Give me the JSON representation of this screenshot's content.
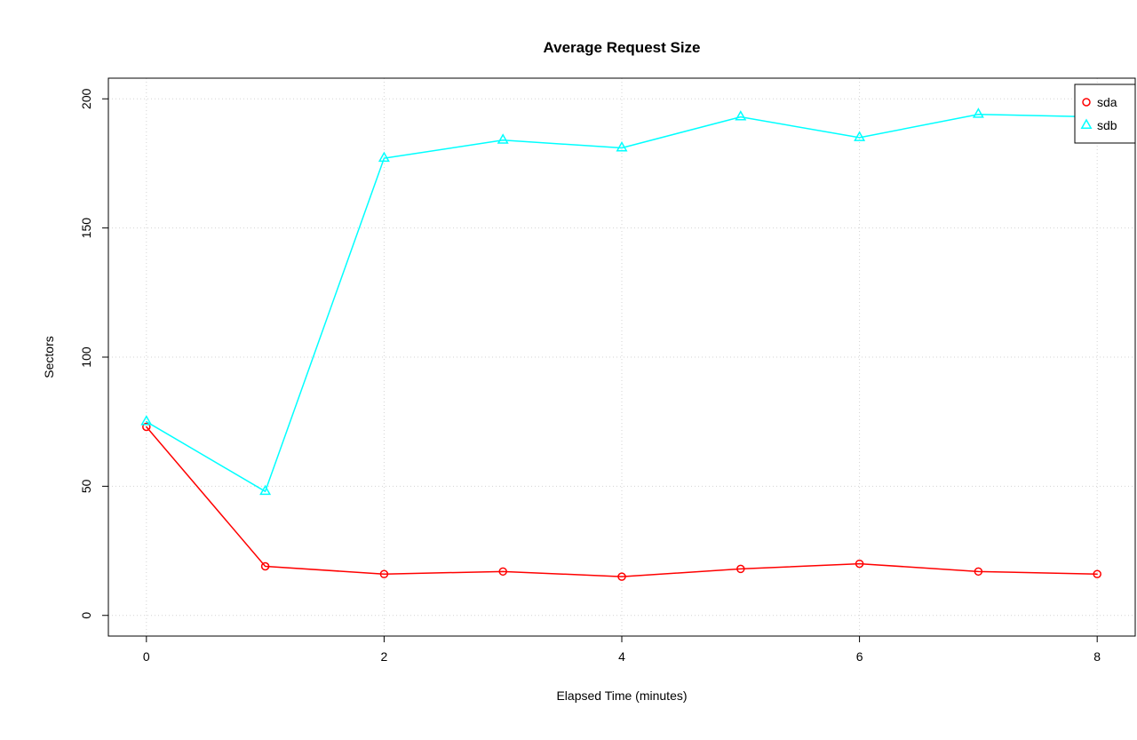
{
  "chart_data": {
    "type": "line",
    "title": "Average Request Size",
    "xlabel": "Elapsed Time (minutes)",
    "ylabel": "Sectors",
    "x": [
      0,
      1,
      2,
      3,
      4,
      5,
      6,
      7,
      8
    ],
    "xticks": [
      0,
      2,
      4,
      6,
      8
    ],
    "yticks": [
      0,
      50,
      100,
      150,
      200
    ],
    "xlim": [
      -0.32,
      8.32
    ],
    "ylim": [
      -8,
      208
    ],
    "grid": true,
    "grid_color": "#d3d3d3",
    "axis_color": "#000000",
    "background": "#ffffff",
    "legend_position": "top-right",
    "series": [
      {
        "name": "sda",
        "color": "#FF0000",
        "marker": "circle",
        "values": [
          73,
          19,
          16,
          17,
          15,
          18,
          20,
          17,
          16
        ]
      },
      {
        "name": "sdb",
        "color": "#00FFFF",
        "marker": "triangle",
        "values": [
          75,
          48,
          177,
          184,
          181,
          193,
          185,
          194,
          193
        ]
      }
    ]
  }
}
